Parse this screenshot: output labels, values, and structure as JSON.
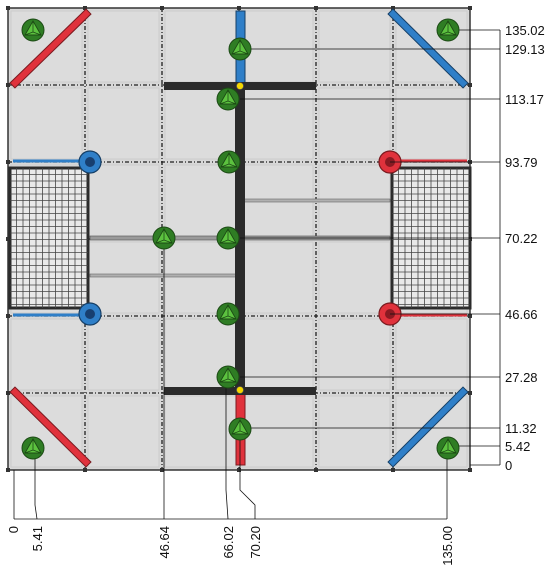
{
  "dimensions": {
    "right": [
      "135.02",
      "129.13",
      "113.17",
      "93.79",
      "70.22",
      "46.66",
      "27.28",
      "11.32",
      "5.42",
      "0"
    ],
    "bottom": [
      "0",
      "5.41",
      "46.64",
      "66.02",
      "70.20",
      "135.00"
    ]
  },
  "colors": {
    "tile": "#dcdcdc",
    "tile_border": "#2a2a2a",
    "red_tape": "#e0323c",
    "blue_tape": "#2f7fc8",
    "beam": "#2b2b2b",
    "net": "#444444",
    "green_marker": "#3f9a2e",
    "yellow_dot": "#f5d800"
  }
}
